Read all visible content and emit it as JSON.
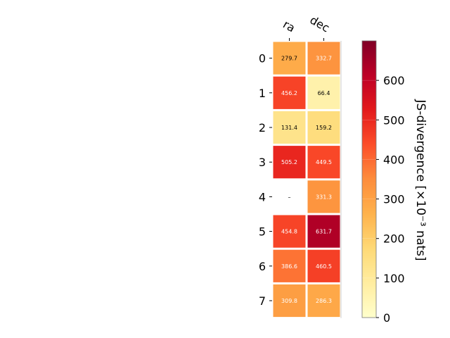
{
  "chart_data": {
    "type": "heatmap",
    "columns": [
      "ra",
      "dec"
    ],
    "rows": [
      "0",
      "1",
      "2",
      "3",
      "4",
      "5",
      "6",
      "7"
    ],
    "values": [
      [
        279.7,
        332.7
      ],
      [
        456.2,
        66.4
      ],
      [
        131.4,
        159.2
      ],
      [
        505.2,
        449.5
      ],
      [
        null,
        331.3
      ],
      [
        454.8,
        631.7
      ],
      [
        386.6,
        460.5
      ],
      [
        309.8,
        286.3
      ]
    ],
    "labels": [
      [
        "279.7",
        "332.7"
      ],
      [
        "456.2",
        "66.4"
      ],
      [
        "131.4",
        "159.2"
      ],
      [
        "505.2",
        "449.5"
      ],
      [
        "–",
        "331.3"
      ],
      [
        "454.8",
        "631.7"
      ],
      [
        "386.6",
        "460.5"
      ],
      [
        "309.8",
        "286.3"
      ]
    ],
    "colorbar": {
      "label": "JS-divergence [×10⁻³ nats]",
      "range": [
        0,
        700
      ],
      "ticks": [
        0,
        100,
        200,
        300,
        400,
        500,
        600
      ],
      "colormap": "YlOrRd"
    }
  }
}
